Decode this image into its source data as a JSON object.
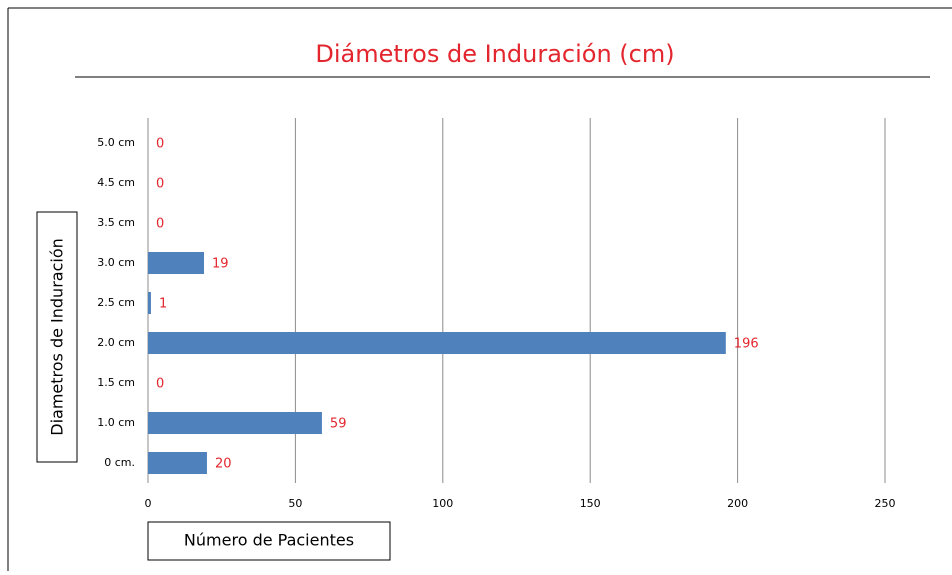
{
  "chart_data": {
    "type": "barh",
    "title": "Diámetros de Induración (cm)",
    "xlabel": "Número de Pacientes",
    "ylabel": "Diametros de Induración",
    "categories": [
      "5.0 cm",
      "4.5 cm",
      "3.5 cm",
      "3.0 cm",
      "2.5 cm",
      "2.0 cm",
      "1.5 cm",
      "1.0 cm",
      "0 cm."
    ],
    "values": [
      0,
      0,
      0,
      19,
      1,
      196,
      0,
      59,
      20
    ],
    "color": "#4f81bd",
    "label_color": "#e3262e",
    "xlim": [
      0,
      250
    ],
    "xticks": [
      0,
      50,
      100,
      150,
      200,
      250
    ],
    "grid": true
  }
}
